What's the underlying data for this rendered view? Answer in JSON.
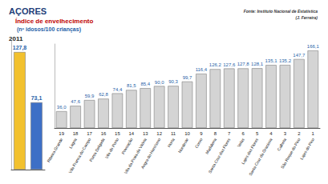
{
  "header": {
    "region": "AÇORES",
    "title": "Índice de envelhecimento",
    "unit": "(nº idosos/100 crianças)",
    "year": "2011"
  },
  "source": [
    "Fonte: Instituto Nacional de Estatística",
    "(J. Ferreira)"
  ],
  "chart_data": [
    {
      "type": "bar",
      "categories": [
        null,
        null
      ],
      "values": [
        127.8,
        73.1
      ],
      "value_labels": [
        "127,8",
        "73,1"
      ],
      "colors": [
        "#f2c12e",
        "#3d6fc6"
      ],
      "ylim": [
        0,
        140
      ],
      "data_labels": true,
      "tick_labels": false
    },
    {
      "type": "bar",
      "categories": [
        "Ribeira Grande",
        "Lagoa",
        "Vila Franca do Campo",
        "Ponta Delgada",
        "Vila do Porto",
        "Povoação",
        "Vila da Praia da Vitória",
        "Angra do Heroísmo",
        "Horta",
        "Nordeste",
        "Corvo",
        "Madalena",
        "Santa Cruz das Flores",
        "Velas",
        "Lajes das Flores",
        "Santa Cruz da Graciosa",
        "Calheta",
        "São Roque do Pico",
        "Lajes do Pico"
      ],
      "ranks": [
        19,
        18,
        17,
        16,
        15,
        14,
        13,
        12,
        11,
        10,
        9,
        8,
        7,
        6,
        5,
        4,
        3,
        2,
        1
      ],
      "values": [
        36.0,
        47.6,
        59.9,
        62.8,
        74.4,
        81.5,
        85.4,
        90.0,
        90.3,
        99.7,
        116.4,
        126.2,
        127.6,
        127.8,
        128.1,
        135.1,
        135.2,
        147.7,
        166.1
      ],
      "value_labels": [
        "36,0",
        "47,6",
        "59,9",
        "62,8",
        "74,4",
        "81,5",
        "85,4",
        "90,0",
        "90,3",
        "99,7",
        "116,4",
        "126,2",
        "127,6",
        "127,8",
        "128,1",
        "135,1",
        "135,2",
        "147,7",
        "166,1"
      ],
      "color": "#d4d4d4",
      "ylim": [
        0,
        180
      ],
      "data_labels": true,
      "tick_labels": "x"
    }
  ]
}
